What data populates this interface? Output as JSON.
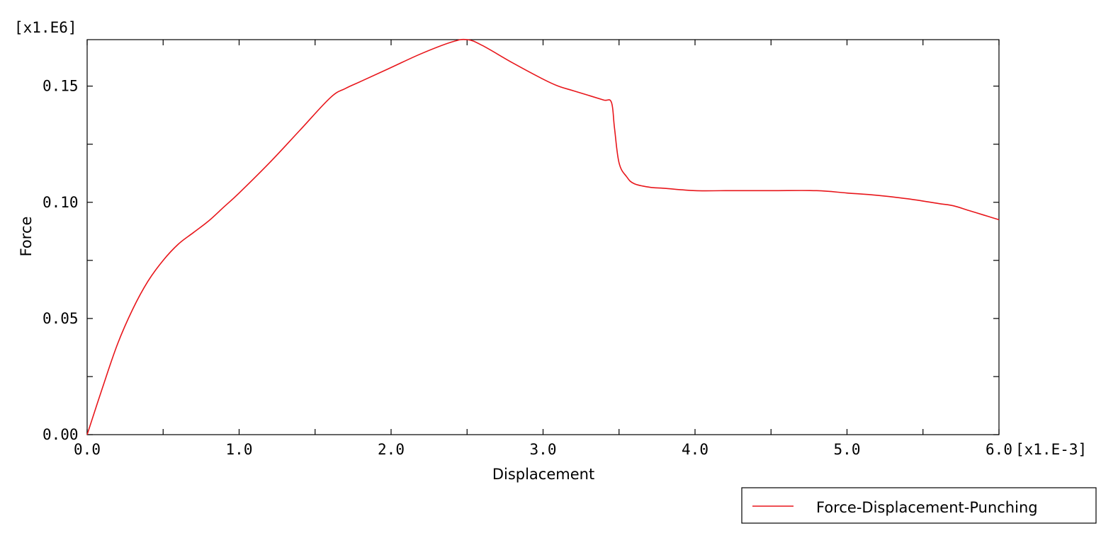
{
  "chart_data": {
    "type": "line",
    "xlabel": "Displacement",
    "ylabel": "Force",
    "x_multiplier": "[x1.E-3]",
    "y_multiplier": "[x1.E6]",
    "xlim": [
      0.0,
      6.0
    ],
    "ylim": [
      0.0,
      0.17
    ],
    "x_ticks": [
      {
        "value": 0.0,
        "label": "0.0"
      },
      {
        "value": 1.0,
        "label": "1.0"
      },
      {
        "value": 2.0,
        "label": "2.0"
      },
      {
        "value": 3.0,
        "label": "3.0"
      },
      {
        "value": 4.0,
        "label": "4.0"
      },
      {
        "value": 5.0,
        "label": "5.0"
      },
      {
        "value": 6.0,
        "label": "6.0"
      }
    ],
    "y_ticks": [
      {
        "value": 0.0,
        "label": "0.00"
      },
      {
        "value": 0.05,
        "label": "0.05"
      },
      {
        "value": 0.1,
        "label": "0.10"
      },
      {
        "value": 0.15,
        "label": "0.15"
      }
    ],
    "x_minor_step": 0.5,
    "y_minor_step": 0.025,
    "grid": false,
    "legend_position": "bottom-right",
    "series": [
      {
        "name": "Force-Displacement-Punching",
        "color": "#e8161b",
        "x": [
          0.0,
          0.1,
          0.2,
          0.3,
          0.4,
          0.5,
          0.6,
          0.7,
          0.8,
          0.9,
          1.0,
          1.2,
          1.4,
          1.6,
          1.7,
          1.8,
          2.0,
          2.2,
          2.4,
          2.5,
          2.6,
          2.8,
          3.0,
          3.1,
          3.2,
          3.3,
          3.4,
          3.45,
          3.47,
          3.5,
          3.55,
          3.6,
          3.7,
          3.8,
          4.0,
          4.2,
          4.5,
          4.8,
          5.0,
          5.2,
          5.4,
          5.6,
          5.7,
          5.8,
          5.9,
          6.0
        ],
        "y": [
          0.0,
          0.02,
          0.039,
          0.054,
          0.066,
          0.075,
          0.082,
          0.087,
          0.092,
          0.098,
          0.104,
          0.117,
          0.131,
          0.145,
          0.149,
          0.152,
          0.158,
          0.164,
          0.169,
          0.17,
          0.1675,
          0.16,
          0.153,
          0.15,
          0.148,
          0.146,
          0.144,
          0.143,
          0.132,
          0.117,
          0.111,
          0.108,
          0.1065,
          0.106,
          0.105,
          0.105,
          0.105,
          0.105,
          0.104,
          0.103,
          0.1015,
          0.0995,
          0.0985,
          0.0965,
          0.0945,
          0.0925
        ]
      }
    ]
  }
}
